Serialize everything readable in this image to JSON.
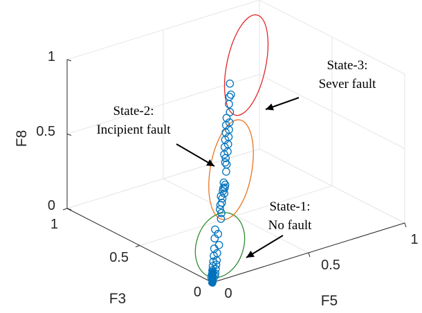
{
  "chart_data": {
    "type": "scatter",
    "projection": "3d",
    "xlabel": "F3",
    "ylabel": "F5",
    "zlabel": "F8",
    "xlim": [
      0,
      1
    ],
    "ylim": [
      0,
      1
    ],
    "zlim": [
      0,
      1
    ],
    "xticks": [
      "0",
      "0.5",
      "1"
    ],
    "yticks": [
      "0",
      "0.5",
      "1"
    ],
    "zticks": [
      "0",
      "0.5",
      "1"
    ],
    "grid": true,
    "marker_color": "#0072BD",
    "annotations": [
      {
        "lines": [
          "State-1:",
          "No fault"
        ],
        "ellipse_color": "#2E8B2E"
      },
      {
        "lines": [
          "State-2:",
          "Incipient fault"
        ],
        "ellipse_color": "#E8731E"
      },
      {
        "lines": [
          "State-3:",
          "Sever fault"
        ],
        "ellipse_color": "#E02525"
      }
    ],
    "series": [
      {
        "group": "State-1",
        "points": [
          [
            0.0,
            0.0,
            0.0
          ],
          [
            0.01,
            0.01,
            0.01
          ],
          [
            0.02,
            0.01,
            0.02
          ],
          [
            0.01,
            0.02,
            0.03
          ],
          [
            0.03,
            0.02,
            0.03
          ],
          [
            0.02,
            0.03,
            0.04
          ],
          [
            0.04,
            0.03,
            0.05
          ],
          [
            0.03,
            0.04,
            0.06
          ],
          [
            0.05,
            0.04,
            0.07
          ],
          [
            0.04,
            0.05,
            0.08
          ],
          [
            0.06,
            0.05,
            0.09
          ],
          [
            0.05,
            0.06,
            0.1
          ],
          [
            0.07,
            0.06,
            0.12
          ],
          [
            0.06,
            0.07,
            0.14
          ],
          [
            0.08,
            0.07,
            0.16
          ],
          [
            0.06,
            0.08,
            0.19
          ],
          [
            0.09,
            0.08,
            0.22
          ],
          [
            0.08,
            0.09,
            0.25
          ],
          [
            0.1,
            0.09,
            0.27
          ]
        ]
      },
      {
        "group": "State-2",
        "points": [
          [
            0.1,
            0.12,
            0.33
          ],
          [
            0.11,
            0.13,
            0.36
          ],
          [
            0.12,
            0.13,
            0.38
          ],
          [
            0.13,
            0.14,
            0.4
          ],
          [
            0.12,
            0.14,
            0.42
          ],
          [
            0.13,
            0.15,
            0.44
          ],
          [
            0.14,
            0.15,
            0.45
          ],
          [
            0.13,
            0.16,
            0.47
          ],
          [
            0.14,
            0.16,
            0.48
          ],
          [
            0.15,
            0.17,
            0.49
          ],
          [
            0.14,
            0.17,
            0.5
          ],
          [
            0.15,
            0.18,
            0.51
          ],
          [
            0.16,
            0.18,
            0.52
          ],
          [
            0.17,
            0.2,
            0.58
          ],
          [
            0.18,
            0.21,
            0.62
          ]
        ]
      },
      {
        "group": "State-3",
        "points": [
          [
            0.15,
            0.18,
            0.66
          ],
          [
            0.16,
            0.19,
            0.68
          ],
          [
            0.17,
            0.19,
            0.7
          ],
          [
            0.16,
            0.2,
            0.72
          ],
          [
            0.18,
            0.2,
            0.74
          ],
          [
            0.17,
            0.21,
            0.76
          ],
          [
            0.19,
            0.21,
            0.78
          ],
          [
            0.18,
            0.22,
            0.8
          ],
          [
            0.2,
            0.22,
            0.82
          ],
          [
            0.19,
            0.23,
            0.84
          ],
          [
            0.21,
            0.23,
            0.86
          ],
          [
            0.2,
            0.24,
            0.88
          ],
          [
            0.22,
            0.24,
            0.9
          ],
          [
            0.21,
            0.25,
            0.94
          ],
          [
            0.23,
            0.26,
            0.98
          ],
          [
            0.24,
            0.27,
            1.02
          ],
          [
            0.23,
            0.27,
            1.04
          ],
          [
            0.25,
            0.28,
            1.1
          ]
        ]
      }
    ]
  }
}
